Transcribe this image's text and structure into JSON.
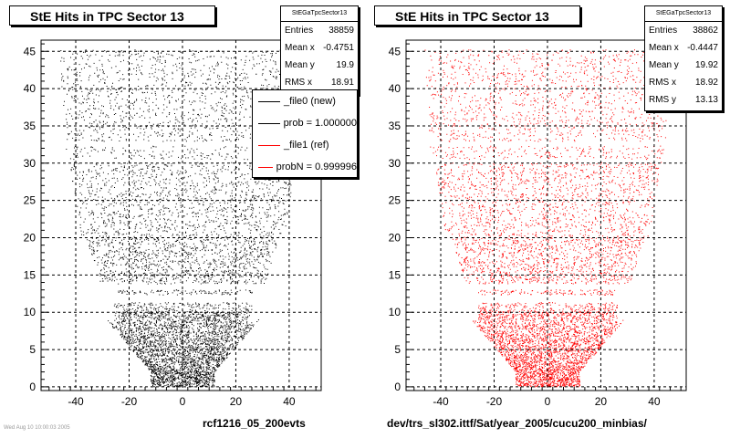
{
  "chart_data": [
    {
      "type": "scatter",
      "title": "StE Hits in TPC Sector 13",
      "caption": "rcf1216_05_200evts",
      "marker_color": "#000000",
      "xlim": [
        -53,
        52
      ],
      "ylim": [
        -0.5,
        46.5
      ],
      "xticks": [
        -40,
        -20,
        0,
        20,
        40
      ],
      "yticks": [
        0,
        5,
        10,
        15,
        20,
        25,
        30,
        35,
        40,
        45
      ],
      "grid": true,
      "stats": {
        "name": "StEGaTpcSector13",
        "rows": [
          {
            "label": "Entries",
            "value": "38859"
          },
          {
            "label": "Mean x",
            "value": "-0.4751"
          },
          {
            "label": "Mean y",
            "value": "19.9"
          },
          {
            "label": "RMS x",
            "value": "18.91"
          }
        ]
      },
      "legend": [
        {
          "label": "_file0 (new)",
          "color": "#000000"
        },
        {
          "label": "prob = 1.000000",
          "color": "#000000"
        },
        {
          "label": "_file1 (ref)",
          "color": "#ff0000"
        },
        {
          "label": "probN = 0.999996",
          "color": "#ff0000"
        }
      ]
    },
    {
      "type": "scatter",
      "title": "StE Hits in TPC Sector 13",
      "caption": "dev/trs_sl302.ittf/Sat/year_2005/cucu200_minbias/",
      "marker_color": "#ff0000",
      "xlim": [
        -53,
        52
      ],
      "ylim": [
        -0.5,
        46.5
      ],
      "xticks": [
        -40,
        -20,
        0,
        20,
        40
      ],
      "yticks": [
        0,
        5,
        10,
        15,
        20,
        25,
        30,
        35,
        40,
        45
      ],
      "grid": true,
      "stats": {
        "name": "StEGaTpcSector13",
        "rows": [
          {
            "label": "Entries",
            "value": "38862"
          },
          {
            "label": "Mean x",
            "value": "-0.4447"
          },
          {
            "label": "Mean y",
            "value": "19.92"
          },
          {
            "label": "RMS x",
            "value": "18.92"
          },
          {
            "label": "RMS y",
            "value": "13.13"
          }
        ]
      }
    }
  ],
  "footer_stamp": "Wed Aug 10 10:00:03 2005"
}
